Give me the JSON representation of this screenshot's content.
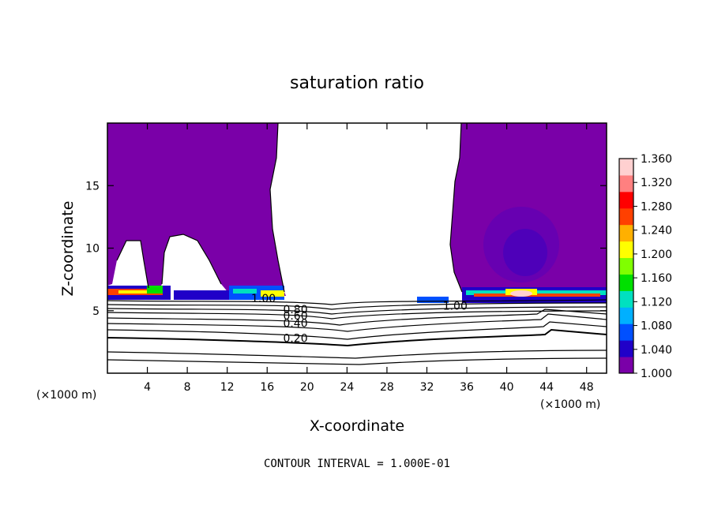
{
  "chart_data": {
    "type": "heatmap",
    "title": "saturation ratio",
    "xlabel": "X-coordinate",
    "ylabel": "Z-coordinate",
    "x_unit_left": "(×1000 m)",
    "x_unit_right": "(×1000 m)",
    "footnote": "CONTOUR INTERVAL = 1.000E-01",
    "xlim": [
      0,
      50
    ],
    "ylim": [
      0,
      20
    ],
    "x_ticks": [
      4,
      8,
      12,
      16,
      20,
      24,
      28,
      32,
      36,
      40,
      44,
      48
    ],
    "y_ticks": [
      5,
      10,
      15
    ],
    "colorbar": {
      "min": 1.0,
      "max": 1.36,
      "ticks": [
        "1.360",
        "1.320",
        "1.280",
        "1.240",
        "1.200",
        "1.160",
        "1.120",
        "1.080",
        "1.040",
        "1.000"
      ],
      "colors": [
        "#7a00a8",
        "#2000c8",
        "#0050ff",
        "#00b0ff",
        "#00e0c0",
        "#00e000",
        "#80ff00",
        "#ffff00",
        "#ffb000",
        "#ff4000",
        "#ff0000",
        "#ff8080",
        "#ffd0d0"
      ]
    },
    "contour_labels": [
      {
        "text": "1.00",
        "x": 14.4,
        "y": 6.0
      },
      {
        "text": "1.00",
        "x": 33.6,
        "y": 5.4
      },
      {
        "text": "0.80",
        "x": 17.6,
        "y": 5.1
      },
      {
        "text": "0.60",
        "x": 17.6,
        "y": 4.6
      },
      {
        "text": "0.40",
        "x": 17.6,
        "y": 4.0
      },
      {
        "text": "0.20",
        "x": 17.6,
        "y": 2.8
      }
    ]
  }
}
